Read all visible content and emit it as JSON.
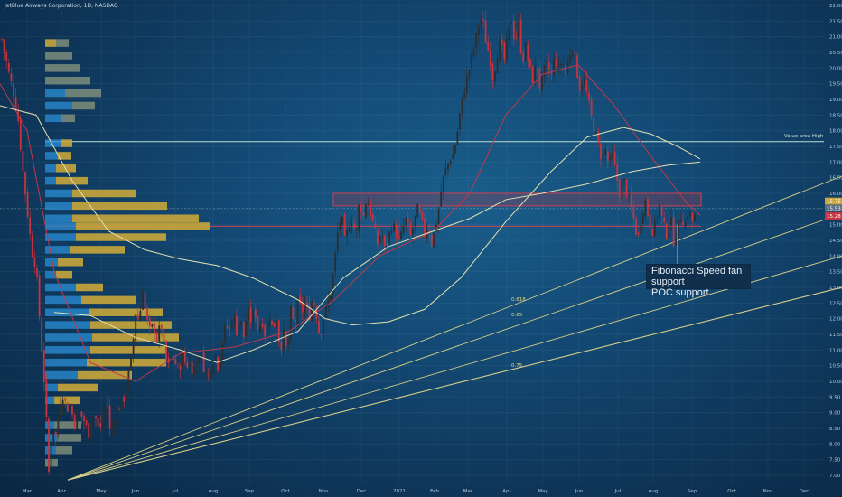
{
  "title": "JetBlue Airways Corporation, 1D, NASDAQ",
  "annotation": [
    "Fibonacci Speed fan support",
    "POC support"
  ],
  "value_area_label": "Value area High",
  "fan_labels": [
    "0.618",
    "0.65",
    "0.75"
  ],
  "colors": {
    "bg": "#134a75",
    "up": "#2b2d2f",
    "down": "#c8333f",
    "profile_up": "#c8a63a",
    "profile_blue": "#2b8fd6",
    "fan": "#d9cf8a",
    "ma_red": "#c0394a",
    "ma_light": "#e3e1b0"
  },
  "chart_data": {
    "type": "candlestick",
    "title": "JetBlue Airways Corporation, 1D, NASDAQ",
    "x_ticks": [
      "Mar",
      "Apr",
      "May",
      "Jun",
      "Jul",
      "Aug",
      "Sep",
      "Oct",
      "Nov",
      "Dec",
      "2021",
      "Feb",
      "Mar",
      "Apr",
      "May",
      "Jun",
      "Jul",
      "Aug",
      "Sep",
      "Oct",
      "Nov",
      "Dec"
    ],
    "y_ticks": [
      "22.00",
      "21.50",
      "21.00",
      "20.50",
      "20.00",
      "19.50",
      "19.00",
      "18.50",
      "18.00",
      "17.50",
      "17.00",
      "16.50",
      "16.00",
      "15.50",
      "15.00",
      "14.50",
      "14.00",
      "13.50",
      "13.00",
      "12.50",
      "12.00",
      "11.50",
      "11.00",
      "10.50",
      "10.00",
      "9.50",
      "9.00",
      "8.50",
      "8.00",
      "7.50",
      "7.00"
    ],
    "price_labels": [
      "15.75",
      "15.53",
      "15.28"
    ],
    "ylim": [
      6.75,
      22.1
    ],
    "close_path": [
      [
        0,
        21.2
      ],
      [
        5,
        20.5
      ],
      [
        10,
        19.8
      ],
      [
        15,
        19.2
      ],
      [
        20,
        18.4
      ],
      [
        25,
        16.8
      ],
      [
        30,
        15.5
      ],
      [
        35,
        14.2
      ],
      [
        40,
        13.6
      ],
      [
        45,
        11.5
      ],
      [
        50,
        9.6
      ],
      [
        54,
        7.1
      ],
      [
        58,
        8.6
      ],
      [
        62,
        8.2
      ],
      [
        66,
        9.3
      ],
      [
        70,
        9.6
      ],
      [
        74,
        9.1
      ],
      [
        78,
        9.3
      ],
      [
        82,
        8.6
      ],
      [
        86,
        9.1
      ],
      [
        90,
        8.9
      ],
      [
        94,
        8.7
      ],
      [
        98,
        8.3
      ],
      [
        102,
        9.0
      ],
      [
        106,
        8.8
      ],
      [
        110,
        8.4
      ],
      [
        114,
        8.9
      ],
      [
        118,
        9.6
      ],
      [
        122,
        8.3
      ],
      [
        126,
        8.7
      ],
      [
        130,
        9.1
      ],
      [
        134,
        9.3
      ],
      [
        138,
        9.5
      ],
      [
        142,
        10.2
      ],
      [
        146,
        10.8
      ],
      [
        150,
        12.2
      ],
      [
        154,
        11.9
      ],
      [
        158,
        13.0
      ],
      [
        162,
        12.0
      ],
      [
        166,
        11.6
      ],
      [
        170,
        11.8
      ],
      [
        174,
        11.3
      ],
      [
        178,
        11.9
      ],
      [
        182,
        11.0
      ],
      [
        186,
        10.4
      ],
      [
        190,
        10.8
      ],
      [
        194,
        10.6
      ],
      [
        198,
        10.3
      ],
      [
        202,
        10.9
      ],
      [
        206,
        10.5
      ],
      [
        210,
        10.6
      ],
      [
        214,
        10.3
      ],
      [
        218,
        10.7
      ],
      [
        222,
        11.0
      ],
      [
        226,
        10.4
      ],
      [
        230,
        10.1
      ],
      [
        234,
        10.5
      ],
      [
        238,
        10.9
      ],
      [
        242,
        10.4
      ],
      [
        246,
        11.2
      ],
      [
        250,
        11.8
      ],
      [
        254,
        11.6
      ],
      [
        258,
        12.2
      ],
      [
        262,
        11.6
      ],
      [
        266,
        12.0
      ],
      [
        270,
        11.4
      ],
      [
        274,
        12.3
      ],
      [
        278,
        11.9
      ],
      [
        282,
        12.3
      ],
      [
        286,
        11.6
      ],
      [
        290,
        12.0
      ],
      [
        294,
        11.4
      ],
      [
        298,
        12.2
      ],
      [
        302,
        11.6
      ],
      [
        306,
        12.1
      ],
      [
        310,
        11.0
      ],
      [
        314,
        11.5
      ],
      [
        318,
        10.8
      ],
      [
        322,
        12.3
      ],
      [
        326,
        11.7
      ],
      [
        330,
        12.6
      ],
      [
        334,
        12.2
      ],
      [
        338,
        12.5
      ],
      [
        342,
        12.0
      ],
      [
        346,
        12.7
      ],
      [
        350,
        12.2
      ],
      [
        354,
        11.4
      ],
      [
        358,
        12.0
      ],
      [
        362,
        12.4
      ],
      [
        366,
        12.8
      ],
      [
        370,
        13.7
      ],
      [
        374,
        14.8
      ],
      [
        378,
        15.3
      ],
      [
        382,
        14.4
      ],
      [
        386,
        15.0
      ],
      [
        390,
        15.2
      ],
      [
        394,
        14.6
      ],
      [
        398,
        15.8
      ],
      [
        402,
        15.2
      ],
      [
        406,
        15.9
      ],
      [
        410,
        15.4
      ],
      [
        414,
        14.9
      ],
      [
        418,
        14.4
      ],
      [
        422,
        14.8
      ],
      [
        426,
        14.2
      ],
      [
        430,
        14.6
      ],
      [
        434,
        15.0
      ],
      [
        438,
        14.8
      ],
      [
        442,
        14.4
      ],
      [
        446,
        14.9
      ],
      [
        450,
        15.2
      ],
      [
        454,
        14.6
      ],
      [
        458,
        15.0
      ],
      [
        462,
        15.5
      ],
      [
        466,
        15.2
      ],
      [
        470,
        14.7
      ],
      [
        474,
        15.0
      ],
      [
        478,
        14.4
      ],
      [
        482,
        14.9
      ],
      [
        486,
        15.6
      ],
      [
        490,
        16.4
      ],
      [
        494,
        16.8
      ],
      [
        498,
        17.1
      ],
      [
        502,
        17.3
      ],
      [
        506,
        17.9
      ],
      [
        510,
        18.7
      ],
      [
        514,
        19.3
      ],
      [
        518,
        19.8
      ],
      [
        522,
        20.3
      ],
      [
        526,
        20.8
      ],
      [
        530,
        21.4
      ],
      [
        534,
        21.6
      ],
      [
        538,
        20.8
      ],
      [
        542,
        20.4
      ],
      [
        546,
        19.6
      ],
      [
        550,
        20.4
      ],
      [
        554,
        20.9
      ],
      [
        558,
        20.2
      ],
      [
        562,
        21.0
      ],
      [
        566,
        21.6
      ],
      [
        570,
        20.8
      ],
      [
        574,
        21.4
      ],
      [
        578,
        20.2
      ],
      [
        582,
        20.7
      ],
      [
        586,
        20.0
      ],
      [
        590,
        19.6
      ],
      [
        594,
        20.2
      ],
      [
        598,
        19.3
      ],
      [
        602,
        19.9
      ],
      [
        606,
        20.1
      ],
      [
        610,
        19.7
      ],
      [
        614,
        20.4
      ],
      [
        618,
        19.9
      ],
      [
        622,
        20.3
      ],
      [
        626,
        19.8
      ],
      [
        630,
        20.4
      ],
      [
        634,
        20.7
      ],
      [
        638,
        20.0
      ],
      [
        642,
        19.3
      ],
      [
        646,
        19.7
      ],
      [
        650,
        19.1
      ],
      [
        654,
        18.5
      ],
      [
        658,
        18.0
      ],
      [
        662,
        17.6
      ],
      [
        666,
        17.1
      ],
      [
        670,
        17.4
      ],
      [
        674,
        16.9
      ],
      [
        678,
        17.2
      ],
      [
        682,
        16.6
      ],
      [
        686,
        16.0
      ],
      [
        690,
        16.5
      ],
      [
        694,
        16.0
      ],
      [
        698,
        15.6
      ],
      [
        702,
        15.1
      ],
      [
        706,
        14.5
      ],
      [
        710,
        15.3
      ],
      [
        714,
        15.8
      ],
      [
        718,
        15.2
      ],
      [
        722,
        14.8
      ],
      [
        726,
        15.1
      ],
      [
        730,
        15.6
      ],
      [
        734,
        15.0
      ],
      [
        738,
        14.7
      ],
      [
        742,
        15.3
      ],
      [
        746,
        14.4
      ],
      [
        750,
        14.9
      ],
      [
        754,
        15.3
      ],
      [
        758,
        15.0
      ],
      [
        762,
        15.5
      ],
      [
        766,
        15.1
      ],
      [
        770,
        15.3
      ],
      [
        773,
        15.3
      ]
    ],
    "series": [
      {
        "name": "",
        "color": "#c0394a",
        "points": [
          [
            0,
            19.5
          ],
          [
            30,
            18.0
          ],
          [
            60,
            13.5
          ],
          [
            100,
            10.6
          ],
          [
            150,
            10.0
          ],
          [
            200,
            10.9
          ],
          [
            260,
            11.1
          ],
          [
            320,
            11.6
          ],
          [
            370,
            12.6
          ],
          [
            420,
            14.0
          ],
          [
            480,
            14.8
          ],
          [
            520,
            16.0
          ],
          [
            560,
            18.5
          ],
          [
            600,
            19.8
          ],
          [
            640,
            20.1
          ],
          [
            680,
            18.8
          ],
          [
            720,
            17.2
          ],
          [
            760,
            15.7
          ],
          [
            775,
            15.3
          ]
        ]
      },
      {
        "name": "",
        "color": "#e3e1b0",
        "points": [
          [
            0,
            18.8
          ],
          [
            40,
            18.5
          ],
          [
            80,
            16.4
          ],
          [
            120,
            14.8
          ],
          [
            160,
            14.2
          ],
          [
            200,
            13.9
          ],
          [
            240,
            13.7
          ],
          [
            280,
            13.3
          ],
          [
            330,
            12.6
          ],
          [
            360,
            12.0
          ],
          [
            390,
            11.8
          ],
          [
            430,
            11.9
          ],
          [
            470,
            12.3
          ],
          [
            510,
            13.3
          ],
          [
            560,
            15.1
          ],
          [
            610,
            16.7
          ],
          [
            650,
            17.8
          ],
          [
            690,
            18.1
          ],
          [
            720,
            17.9
          ],
          [
            750,
            17.5
          ],
          [
            775,
            17.1
          ]
        ]
      },
      {
        "name": "",
        "color": "#e3e1b0",
        "points": [
          [
            60,
            12.2
          ],
          [
            100,
            12.1
          ],
          [
            150,
            11.4
          ],
          [
            200,
            11.0
          ],
          [
            240,
            10.6
          ],
          [
            280,
            11.0
          ],
          [
            330,
            11.6
          ],
          [
            380,
            13.3
          ],
          [
            430,
            14.3
          ],
          [
            480,
            14.8
          ],
          [
            520,
            15.2
          ],
          [
            560,
            15.8
          ],
          [
            600,
            16.0
          ],
          [
            650,
            16.3
          ],
          [
            700,
            16.7
          ],
          [
            740,
            16.9
          ],
          [
            775,
            17.0
          ]
        ]
      }
    ],
    "levels": {
      "value_area_high": 17.65,
      "poc": 14.95,
      "zone": [
        15.6,
        16.0
      ],
      "current": 15.28
    },
    "fan_lines": [
      {
        "label": "",
        "from": [
          75,
          6.85
        ],
        "to": [
          932,
          16.55
        ]
      },
      {
        "label": "0.618",
        "from": [
          75,
          6.85
        ],
        "to": [
          932,
          15.35
        ]
      },
      {
        "label": "0.65",
        "from": [
          75,
          6.85
        ],
        "to": [
          932,
          14.0
        ]
      },
      {
        "label": "0.75",
        "from": [
          75,
          6.85
        ],
        "to": [
          932,
          13.0
        ]
      }
    ],
    "volume_profile": {
      "bins": [
        {
          "price": 20.8,
          "blue": 0,
          "gold": 12,
          "gray": 14
        },
        {
          "price": 20.4,
          "blue": 0,
          "gold": 0,
          "gray": 30
        },
        {
          "price": 20.0,
          "blue": 0,
          "gold": 0,
          "gray": 38
        },
        {
          "price": 19.6,
          "blue": 0,
          "gold": 0,
          "gray": 50
        },
        {
          "price": 19.2,
          "blue": 22,
          "gold": 0,
          "gray": 40
        },
        {
          "price": 18.8,
          "blue": 30,
          "gold": 0,
          "gray": 25
        },
        {
          "price": 18.4,
          "blue": 18,
          "gold": 0,
          "gray": 15
        },
        {
          "price": 17.6,
          "blue": 18,
          "gold": 12,
          "gray": 0
        },
        {
          "price": 17.2,
          "blue": 14,
          "gold": 15,
          "gray": 0
        },
        {
          "price": 16.8,
          "blue": 12,
          "gold": 22,
          "gray": 0
        },
        {
          "price": 16.4,
          "blue": 12,
          "gold": 35,
          "gray": 0
        },
        {
          "price": 16.0,
          "blue": 30,
          "gold": 70,
          "gray": 0
        },
        {
          "price": 15.6,
          "blue": 30,
          "gold": 105,
          "gray": 0
        },
        {
          "price": 15.2,
          "blue": 30,
          "gold": 140,
          "gray": 0
        },
        {
          "price": 14.95,
          "blue": 34,
          "gold": 148,
          "gray": 0
        },
        {
          "price": 14.6,
          "blue": 34,
          "gold": 100,
          "gray": 0
        },
        {
          "price": 14.2,
          "blue": 28,
          "gold": 60,
          "gray": 0
        },
        {
          "price": 13.8,
          "blue": 14,
          "gold": 28,
          "gray": 0
        },
        {
          "price": 13.4,
          "blue": 12,
          "gold": 18,
          "gray": 0
        },
        {
          "price": 13.0,
          "blue": 34,
          "gold": 30,
          "gray": 0
        },
        {
          "price": 12.6,
          "blue": 40,
          "gold": 60,
          "gray": 0
        },
        {
          "price": 12.2,
          "blue": 48,
          "gold": 82,
          "gray": 0
        },
        {
          "price": 11.8,
          "blue": 50,
          "gold": 90,
          "gray": 0
        },
        {
          "price": 11.4,
          "blue": 52,
          "gold": 96,
          "gray": 0
        },
        {
          "price": 11.0,
          "blue": 50,
          "gold": 85,
          "gray": 0
        },
        {
          "price": 10.6,
          "blue": 46,
          "gold": 88,
          "gray": 0
        },
        {
          "price": 10.2,
          "blue": 36,
          "gold": 60,
          "gray": 0
        },
        {
          "price": 9.8,
          "blue": 14,
          "gold": 45,
          "gray": 0
        },
        {
          "price": 9.4,
          "blue": 10,
          "gold": 28,
          "gray": 0
        },
        {
          "price": 8.6,
          "blue": 10,
          "gold": 0,
          "gray": 30
        },
        {
          "price": 8.2,
          "blue": 14,
          "gold": 0,
          "gray": 26
        },
        {
          "price": 7.8,
          "blue": 12,
          "gold": 0,
          "gray": 18
        },
        {
          "price": 7.4,
          "blue": 0,
          "gold": 0,
          "gray": 14
        }
      ]
    }
  }
}
